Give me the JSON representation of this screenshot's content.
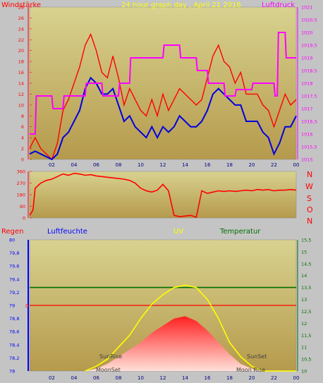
{
  "header": {
    "left_label": "Windstärke",
    "title": "24 hour graph day , April 21 2016",
    "right_label": "Luftdruck"
  },
  "compass": [
    "N",
    "W",
    "S",
    "O",
    "N"
  ],
  "bottom_header": {
    "regen": "Regen",
    "luftfeuchte": "Luftfeuchte",
    "uv": "UV",
    "temperatur": "Temperatur"
  },
  "annotations": {
    "sunrise": "SunRise",
    "moonset": "MoonSet",
    "sunset": "SunSet",
    "moonrise": "Moon Rise"
  },
  "colors": {
    "background": "#c4c4c4",
    "panel_top": "#d8d290",
    "panel_bottom": "#b59a4c",
    "wind_gust": "#ff0000",
    "wind_avg": "#0000e0",
    "pressure": "#ff00ff",
    "rain_axis": "#ff0000",
    "humidity_axis": "#0000ff",
    "uv": "#ffff00",
    "temperature": "#007000"
  },
  "chart_data": [
    {
      "type": "line",
      "name": "wind-pressure",
      "x_ticks": [
        "02",
        "04",
        "06",
        "08",
        "10",
        "12",
        "14",
        "16",
        "18",
        "20",
        "22",
        "00"
      ],
      "y_left_ticks": [
        "0",
        "2",
        "4",
        "6",
        "8",
        "10",
        "12",
        "14",
        "16",
        "18",
        "20",
        "22",
        "24",
        "26",
        "28"
      ],
      "y_right_ticks": [
        "1015",
        "1015,5",
        "1016",
        "1016,5",
        "1017",
        "1017,5",
        "1018",
        "1018,5",
        "1019",
        "1019,5",
        "1020",
        "1020,5",
        "1021"
      ],
      "y_left_range": [
        0,
        28
      ],
      "y_right_range": [
        1015,
        1021
      ],
      "x_range": [
        0,
        24
      ],
      "series": [
        {
          "role": "gust",
          "points": [
            [
              0,
              2
            ],
            [
              0.5,
              4
            ],
            [
              1,
              2
            ],
            [
              1.5,
              1
            ],
            [
              2,
              0
            ],
            [
              2.5,
              3
            ],
            [
              3,
              9
            ],
            [
              3.5,
              11
            ],
            [
              4,
              14
            ],
            [
              4.5,
              17
            ],
            [
              5,
              21
            ],
            [
              5.5,
              23
            ],
            [
              6,
              20
            ],
            [
              6.5,
              16
            ],
            [
              7,
              15
            ],
            [
              7.5,
              19
            ],
            [
              8,
              15
            ],
            [
              8.5,
              10
            ],
            [
              9,
              13
            ],
            [
              9.5,
              11
            ],
            [
              10,
              9
            ],
            [
              10.5,
              8
            ],
            [
              11,
              11
            ],
            [
              11.5,
              8
            ],
            [
              12,
              12
            ],
            [
              12.5,
              9
            ],
            [
              13,
              11
            ],
            [
              13.5,
              13
            ],
            [
              14,
              12
            ],
            [
              14.5,
              11
            ],
            [
              15,
              10
            ],
            [
              15.5,
              11
            ],
            [
              16,
              15
            ],
            [
              16.5,
              19
            ],
            [
              17,
              21
            ],
            [
              17.5,
              18
            ],
            [
              18,
              17
            ],
            [
              18.5,
              14
            ],
            [
              19,
              16
            ],
            [
              19.5,
              12
            ],
            [
              20,
              12
            ],
            [
              20.5,
              12
            ],
            [
              21,
              10
            ],
            [
              21.5,
              9
            ],
            [
              22,
              6
            ],
            [
              22.5,
              9
            ],
            [
              23,
              12
            ],
            [
              23.5,
              10
            ],
            [
              24,
              11
            ]
          ]
        },
        {
          "role": "average",
          "points": [
            [
              0,
              1
            ],
            [
              0.5,
              1.5
            ],
            [
              1,
              1
            ],
            [
              1.5,
              0.5
            ],
            [
              2,
              0
            ],
            [
              2.5,
              1
            ],
            [
              3,
              4
            ],
            [
              3.5,
              5
            ],
            [
              4,
              7
            ],
            [
              4.5,
              9
            ],
            [
              5,
              13
            ],
            [
              5.5,
              15
            ],
            [
              6,
              14
            ],
            [
              6.5,
              12
            ],
            [
              7,
              12
            ],
            [
              7.5,
              13
            ],
            [
              8,
              10
            ],
            [
              8.5,
              7
            ],
            [
              9,
              8
            ],
            [
              9.5,
              6
            ],
            [
              10,
              5
            ],
            [
              10.5,
              4
            ],
            [
              11,
              6
            ],
            [
              11.5,
              4
            ],
            [
              12,
              6
            ],
            [
              12.5,
              5
            ],
            [
              13,
              6
            ],
            [
              13.5,
              8
            ],
            [
              14,
              7
            ],
            [
              14.5,
              6
            ],
            [
              15,
              6
            ],
            [
              15.5,
              7
            ],
            [
              16,
              9
            ],
            [
              16.5,
              12
            ],
            [
              17,
              13
            ],
            [
              17.5,
              12
            ],
            [
              18,
              11
            ],
            [
              18.5,
              10
            ],
            [
              19,
              10
            ],
            [
              19.5,
              7
            ],
            [
              20,
              7
            ],
            [
              20.5,
              7
            ],
            [
              21,
              5
            ],
            [
              21.5,
              4
            ],
            [
              22,
              1
            ],
            [
              22.5,
              3
            ],
            [
              23,
              6
            ],
            [
              23.5,
              6
            ],
            [
              24,
              8
            ]
          ]
        },
        {
          "role": "pressure",
          "points": [
            [
              0,
              1016
            ],
            [
              0.5,
              1016
            ],
            [
              0.6,
              1017.5
            ],
            [
              2,
              1017.5
            ],
            [
              2.1,
              1017
            ],
            [
              3,
              1017
            ],
            [
              3.1,
              1017.5
            ],
            [
              5,
              1017.5
            ],
            [
              5.1,
              1018
            ],
            [
              6.5,
              1018
            ],
            [
              6.6,
              1017.5
            ],
            [
              8,
              1017.5
            ],
            [
              8.1,
              1018
            ],
            [
              9,
              1018
            ],
            [
              9.1,
              1019
            ],
            [
              12,
              1019
            ],
            [
              12.1,
              1019.5
            ],
            [
              13.5,
              1019.5
            ],
            [
              13.6,
              1019
            ],
            [
              15,
              1019
            ],
            [
              15.1,
              1018.5
            ],
            [
              16,
              1018.5
            ],
            [
              16.1,
              1018
            ],
            [
              17.5,
              1018
            ],
            [
              17.6,
              1017.5
            ],
            [
              18.5,
              1017.5
            ],
            [
              18.6,
              1017.75
            ],
            [
              20,
              1017.75
            ],
            [
              20.1,
              1018
            ],
            [
              22,
              1018
            ],
            [
              22.1,
              1017.5
            ],
            [
              22.3,
              1017.5
            ],
            [
              22.4,
              1020
            ],
            [
              23,
              1020
            ],
            [
              23.1,
              1019
            ],
            [
              24,
              1019
            ]
          ]
        }
      ]
    },
    {
      "type": "line",
      "name": "wind-direction",
      "x_ticks": [
        "02",
        "04",
        "06",
        "08",
        "10",
        "12",
        "14",
        "16",
        "18",
        "20",
        "22",
        "00"
      ],
      "y_ticks": [
        "0",
        "90",
        "180",
        "270",
        "360"
      ],
      "y_range": [
        0,
        360
      ],
      "x_range": [
        0,
        24
      ],
      "series": [
        {
          "role": "direction",
          "points": [
            [
              0,
              20
            ],
            [
              0.3,
              60
            ],
            [
              0.5,
              230
            ],
            [
              1,
              270
            ],
            [
              1.5,
              290
            ],
            [
              2,
              300
            ],
            [
              2.5,
              320
            ],
            [
              3,
              340
            ],
            [
              3.5,
              330
            ],
            [
              4,
              345
            ],
            [
              4.5,
              340
            ],
            [
              5,
              330
            ],
            [
              5.5,
              335
            ],
            [
              6,
              325
            ],
            [
              6.5,
              320
            ],
            [
              7,
              315
            ],
            [
              7.5,
              310
            ],
            [
              8,
              305
            ],
            [
              8.5,
              300
            ],
            [
              9,
              290
            ],
            [
              9.5,
              270
            ],
            [
              10,
              230
            ],
            [
              10.5,
              210
            ],
            [
              11,
              200
            ],
            [
              11.5,
              215
            ],
            [
              12,
              260
            ],
            [
              12.5,
              210
            ],
            [
              13,
              20
            ],
            [
              13.5,
              10
            ],
            [
              14,
              15
            ],
            [
              14.5,
              20
            ],
            [
              15,
              5
            ],
            [
              15.5,
              210
            ],
            [
              16,
              190
            ],
            [
              16.5,
              200
            ],
            [
              17,
              210
            ],
            [
              17.5,
              205
            ],
            [
              18,
              210
            ],
            [
              18.5,
              205
            ],
            [
              19,
              210
            ],
            [
              19.5,
              215
            ],
            [
              20,
              210
            ],
            [
              20.5,
              220
            ],
            [
              21,
              215
            ],
            [
              21.5,
              220
            ],
            [
              22,
              210
            ],
            [
              22.5,
              215
            ],
            [
              23,
              215
            ],
            [
              23.5,
              220
            ],
            [
              24,
              215
            ]
          ]
        }
      ]
    },
    {
      "type": "area",
      "name": "rain-humidity-uv-temperature",
      "x_ticks": [
        "02",
        "04",
        "06",
        "08",
        "10",
        "12",
        "14",
        "16",
        "18",
        "20",
        "22",
        "00"
      ],
      "y_left_ticks": [
        "78",
        "78,2",
        "78,4",
        "78,6",
        "78,8",
        "79",
        "79,2",
        "79,4",
        "79,6",
        "79,8",
        "80"
      ],
      "y_right_ticks": [
        "10",
        "10,5",
        "11",
        "11,5",
        "12",
        "12,5",
        "13",
        "13,5",
        "14",
        "14,5",
        "15",
        "15,5"
      ],
      "rain_tick": "0",
      "y_left_range": [
        78,
        80
      ],
      "y_right_range": [
        10,
        15.5
      ],
      "x_range": [
        0,
        24
      ],
      "series": [
        {
          "role": "temperature",
          "points": [
            [
              0,
              13.5
            ],
            [
              24,
              13.5
            ]
          ]
        },
        {
          "role": "uv",
          "points": [
            [
              5,
              10
            ],
            [
              6,
              10.2
            ],
            [
              7,
              10.5
            ],
            [
              8,
              11
            ],
            [
              9,
              11.5
            ],
            [
              10,
              12.2
            ],
            [
              11,
              12.8
            ],
            [
              12,
              13.2
            ],
            [
              13,
              13.5
            ],
            [
              14,
              13.6
            ],
            [
              15,
              13.5
            ],
            [
              16,
              13
            ],
            [
              17,
              12.2
            ],
            [
              18,
              11.2
            ],
            [
              19,
              10.6
            ],
            [
              20,
              10.2
            ],
            [
              21,
              10
            ],
            [
              24,
              10
            ]
          ]
        },
        {
          "role": "temperature-area",
          "points": [
            [
              0,
              10
            ],
            [
              5,
              10
            ],
            [
              6,
              10.1
            ],
            [
              7,
              10.3
            ],
            [
              8,
              10.6
            ],
            [
              9,
              10.9
            ],
            [
              10,
              11.2
            ],
            [
              11,
              11.6
            ],
            [
              12,
              11.9
            ],
            [
              13,
              12.2
            ],
            [
              14,
              12.3
            ],
            [
              15,
              12.1
            ],
            [
              16,
              11.7
            ],
            [
              17,
              11.2
            ],
            [
              18,
              10.7
            ],
            [
              19,
              10.3
            ],
            [
              20,
              10.1
            ],
            [
              21,
              10
            ],
            [
              24,
              10
            ]
          ]
        }
      ]
    }
  ]
}
